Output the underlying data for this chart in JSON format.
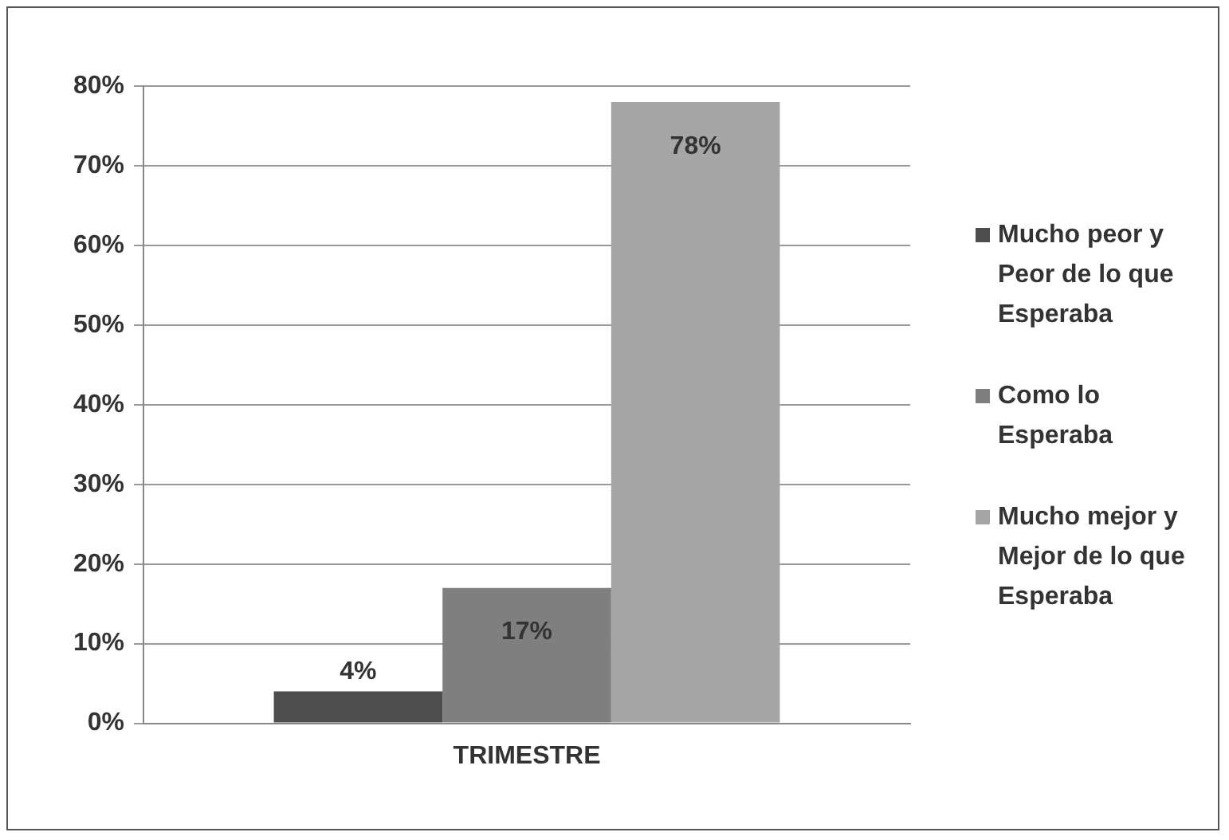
{
  "chart_data": {
    "type": "bar",
    "categories": [
      "TRIMESTRE"
    ],
    "series": [
      {
        "name": "Mucho peor y Peor de lo que Esperaba",
        "color": "#4d4d4d",
        "values": [
          4
        ],
        "value_labels": [
          "4%"
        ]
      },
      {
        "name": "Como lo Esperaba",
        "color": "#7f7f7f",
        "values": [
          17
        ],
        "value_labels": [
          "17%"
        ]
      },
      {
        "name": "Mucho mejor y Mejor de lo que Esperaba",
        "color": "#a6a6a6",
        "values": [
          78
        ],
        "value_labels": [
          "78%"
        ]
      }
    ],
    "ylim": [
      0,
      80
    ],
    "yticks": [
      {
        "value": 0,
        "label": "0%"
      },
      {
        "value": 10,
        "label": "10%"
      },
      {
        "value": 20,
        "label": "20%"
      },
      {
        "value": 30,
        "label": "30%"
      },
      {
        "value": 40,
        "label": "40%"
      },
      {
        "value": 50,
        "label": "50%"
      },
      {
        "value": 60,
        "label": "60%"
      },
      {
        "value": 70,
        "label": "70%"
      },
      {
        "value": 80,
        "label": "80%"
      }
    ],
    "grid": "y",
    "legend": "right"
  }
}
